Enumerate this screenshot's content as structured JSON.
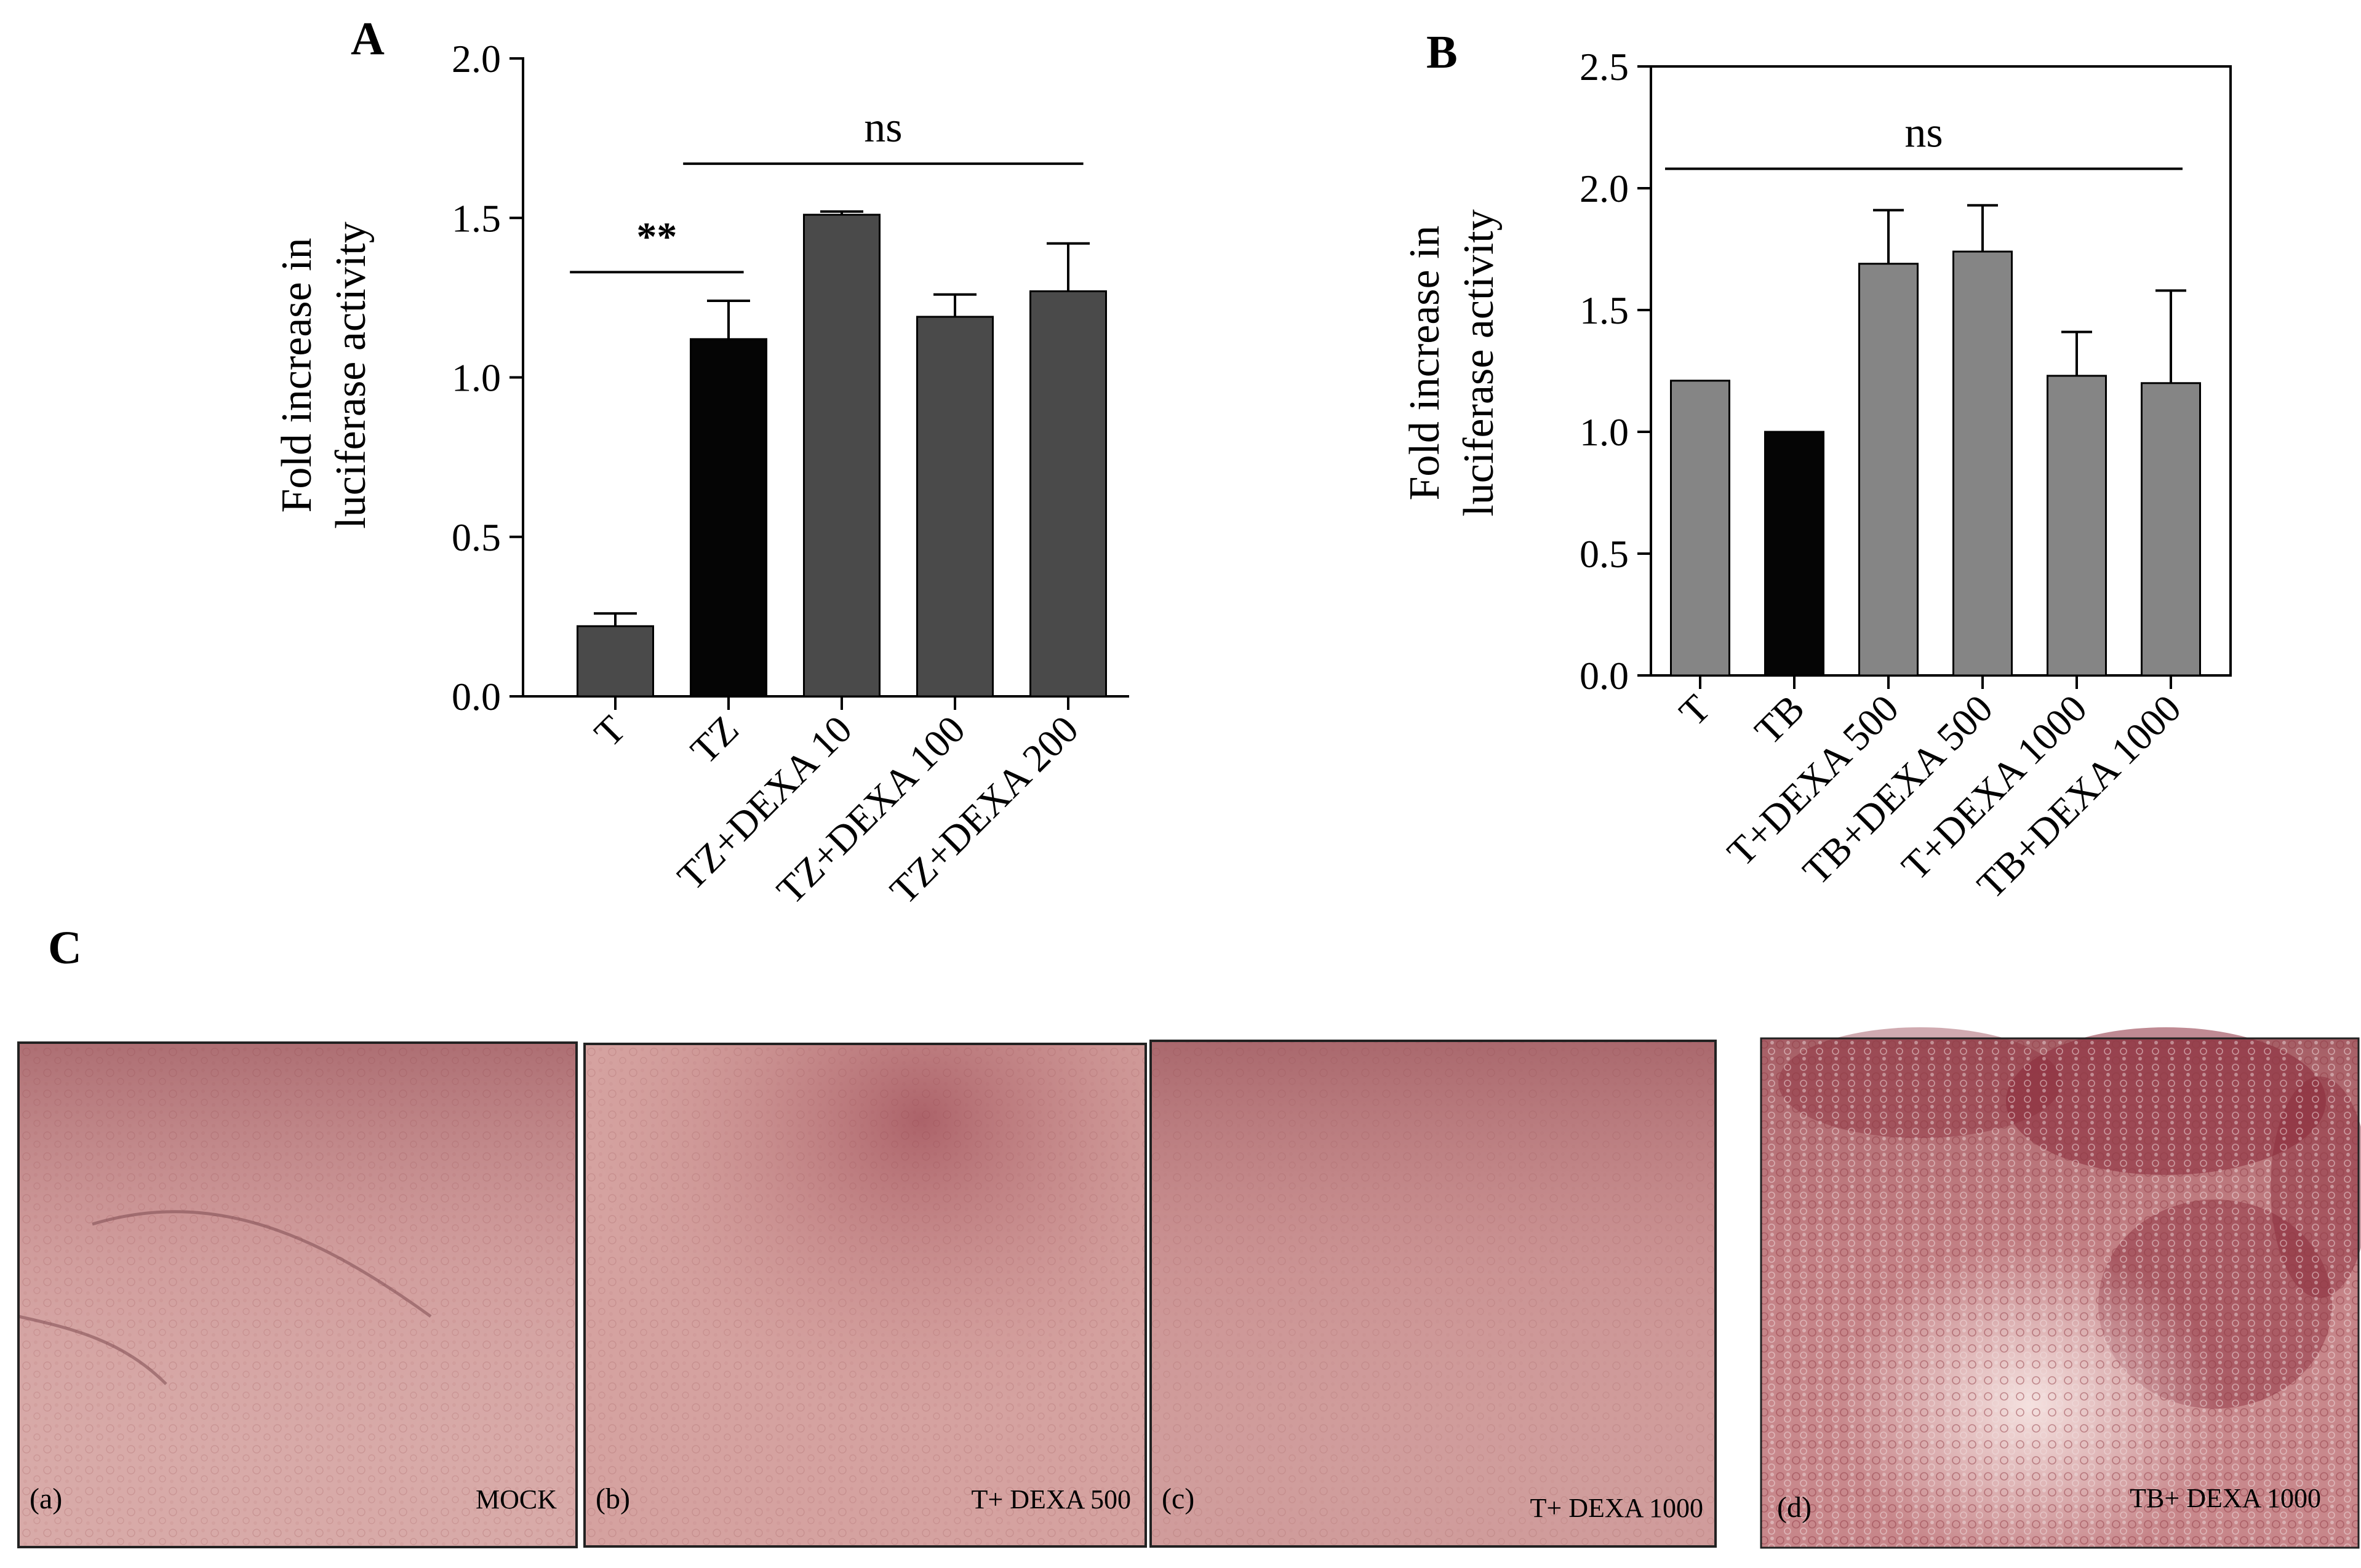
{
  "panel_letters": {
    "a": "A",
    "b": "B",
    "c": "C"
  },
  "colors": {
    "bar_dark_gray": "#4a4a4a",
    "bar_black": "#050505",
    "bar_gray": "#858585",
    "micro_tint": "#c98a88",
    "micro_dark": "#9e3a46"
  },
  "chart_data": [
    {
      "panel": "A",
      "type": "bar",
      "ylabel": [
        "Fold increase in",
        "luciferase activity"
      ],
      "ylim": [
        0,
        2.0
      ],
      "yticks": [
        "0.0",
        "0.5",
        "1.0",
        "1.5",
        "2.0"
      ],
      "categories": [
        "T",
        "TZ",
        "TZ+DEXA 10",
        "TZ+DEXA 100",
        "TZ+DEXA 200"
      ],
      "values": [
        0.22,
        1.12,
        1.51,
        1.19,
        1.27
      ],
      "errors": [
        0.04,
        0.12,
        0.01,
        0.07,
        0.15
      ],
      "bar_colors": [
        "#4a4a4a",
        "#050505",
        "#4a4a4a",
        "#4a4a4a",
        "#4a4a4a"
      ],
      "annotations": [
        {
          "text": "**",
          "from": 0,
          "to": 1,
          "y": 1.33
        },
        {
          "text": "ns",
          "from": 1,
          "to": 4,
          "y": 1.67
        }
      ],
      "grid": false
    },
    {
      "panel": "B",
      "type": "bar",
      "ylabel": [
        "Fold increase in",
        "luciferase activity"
      ],
      "ylim": [
        0,
        2.5
      ],
      "yticks": [
        "0.0",
        "0.5",
        "1.0",
        "1.5",
        "2.0",
        "2.5"
      ],
      "categories": [
        "T",
        "TB",
        "T+DEXA 500",
        "TB+DEXA 500",
        "T+DEXA 1000",
        "TB+DEXA 1000"
      ],
      "values": [
        1.21,
        1.0,
        1.69,
        1.74,
        1.23,
        1.2
      ],
      "errors": [
        0.0,
        0.0,
        0.22,
        0.19,
        0.18,
        0.38
      ],
      "bar_colors": [
        "#858585",
        "#050505",
        "#858585",
        "#858585",
        "#858585",
        "#858585"
      ],
      "annotations": [
        {
          "text": "ns",
          "from": 0,
          "to": 5,
          "y": 2.08
        }
      ],
      "grid": false
    }
  ],
  "micrographs": [
    {
      "tag": "(a)",
      "label": "MOCK"
    },
    {
      "tag": "(b)",
      "label": "T+ DEXA 500"
    },
    {
      "tag": "(c)",
      "label": "T+ DEXA 1000"
    },
    {
      "tag": "(d)",
      "label": "TB+ DEXA 1000"
    }
  ]
}
